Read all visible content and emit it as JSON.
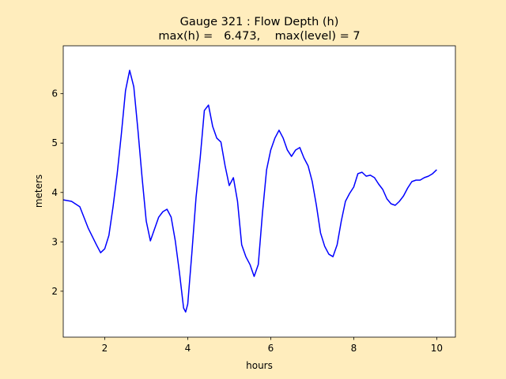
{
  "chart_data": {
    "type": "line",
    "title": "Gauge 321 : Flow Depth (h)",
    "subtitle": "max(h) =   6.473,    max(level) = 7",
    "xlabel": "hours",
    "ylabel": "meters",
    "x": [
      1.0,
      1.2,
      1.4,
      1.6,
      1.8,
      1.9,
      2.0,
      2.1,
      2.2,
      2.3,
      2.4,
      2.5,
      2.6,
      2.7,
      2.8,
      2.9,
      3.0,
      3.1,
      3.2,
      3.3,
      3.4,
      3.5,
      3.6,
      3.7,
      3.8,
      3.9,
      3.95,
      4.0,
      4.1,
      4.2,
      4.3,
      4.4,
      4.5,
      4.6,
      4.7,
      4.8,
      4.9,
      5.0,
      5.1,
      5.2,
      5.3,
      5.4,
      5.5,
      5.6,
      5.7,
      5.8,
      5.9,
      6.0,
      6.1,
      6.2,
      6.3,
      6.4,
      6.5,
      6.6,
      6.7,
      6.8,
      6.9,
      7.0,
      7.1,
      7.2,
      7.3,
      7.4,
      7.5,
      7.6,
      7.7,
      7.8,
      7.9,
      8.0,
      8.1,
      8.2,
      8.3,
      8.4,
      8.5,
      8.6,
      8.7,
      8.8,
      8.9,
      9.0,
      9.1,
      9.2,
      9.3,
      9.4,
      9.5,
      9.6,
      9.7,
      9.8,
      9.9,
      10.0
    ],
    "series": [
      {
        "name": "h",
        "color": "#0000ff",
        "values": [
          3.85,
          3.82,
          3.71,
          3.28,
          2.94,
          2.78,
          2.86,
          3.13,
          3.71,
          4.38,
          5.18,
          6.06,
          6.473,
          6.14,
          5.26,
          4.3,
          3.42,
          3.02,
          3.26,
          3.5,
          3.61,
          3.66,
          3.5,
          3.02,
          2.38,
          1.66,
          1.58,
          1.74,
          2.78,
          3.9,
          4.7,
          5.66,
          5.77,
          5.34,
          5.1,
          5.02,
          4.54,
          4.14,
          4.3,
          3.82,
          2.94,
          2.7,
          2.54,
          2.3,
          2.54,
          3.58,
          4.46,
          4.86,
          5.1,
          5.26,
          5.1,
          4.86,
          4.73,
          4.86,
          4.91,
          4.7,
          4.54,
          4.22,
          3.74,
          3.18,
          2.91,
          2.75,
          2.7,
          2.94,
          3.42,
          3.82,
          3.98,
          4.11,
          4.38,
          4.41,
          4.33,
          4.35,
          4.3,
          4.17,
          4.06,
          3.87,
          3.77,
          3.74,
          3.82,
          3.93,
          4.09,
          4.22,
          4.25,
          4.25,
          4.3,
          4.33,
          4.38,
          4.46
        ]
      }
    ],
    "xlim": [
      1.0,
      10.45
    ],
    "xticks": [
      2,
      4,
      6,
      8,
      10
    ],
    "ylim": [
      1.07,
      6.97
    ],
    "yticks": [
      2,
      3,
      4,
      5,
      6
    ]
  }
}
